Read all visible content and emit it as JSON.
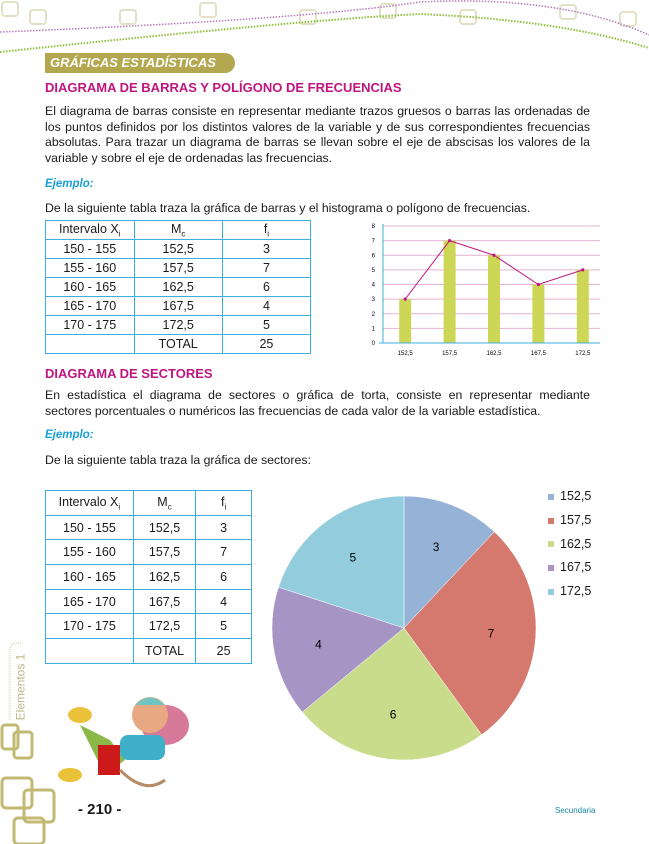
{
  "section_tag": "GRÁFICAS ESTADÍSTICAS",
  "bar_section": {
    "heading": "DIAGRAMA DE BARRAS Y POLÍGONO DE FRECUENCIAS",
    "paragraph": "El diagrama de barras consiste en representar mediante trazos gruesos o barras las ordenadas de los puntos definidos por los distintos valores de la variable y de sus correspondientes frecuencias absolutas. Para trazar un diagrama de barras se llevan sobre el eje de abscisas los valores de la variable y sobre el eje de ordenadas las frecuencias.",
    "example_label": "Ejemplo:",
    "instruction": "De la siguiente tabla traza la gráfica de barras y el histograma o polígono de frecuencias."
  },
  "table": {
    "headers": [
      {
        "main": "Intervalo X",
        "sub": "i"
      },
      {
        "main": "M",
        "sub": "c"
      },
      {
        "main": "f",
        "sub": "i"
      }
    ],
    "rows": [
      [
        "150 - 155",
        "152,5",
        "3"
      ],
      [
        "155 - 160",
        "157,5",
        "7"
      ],
      [
        "160 - 165",
        "162,5",
        "6"
      ],
      [
        "165 - 170",
        "167,5",
        "4"
      ],
      [
        "170 - 175",
        "172,5",
        "5"
      ]
    ],
    "total_label": "TOTAL",
    "total_value": "25"
  },
  "pie_section": {
    "heading": "DIAGRAMA DE SECTORES",
    "paragraph": "En estadística el diagrama de sectores o gráfica de torta, consiste en representar mediante sectores porcentuales o numéricos las frecuencias de cada valor de la variable estadística.",
    "example_label": "Ejemplo:",
    "instruction": "De la siguiente tabla traza la gráfica de sectores:"
  },
  "chart_data": [
    {
      "type": "bar",
      "categories": [
        "152,5",
        "157,5",
        "162,5",
        "167,5",
        "172,5"
      ],
      "values": [
        3,
        7,
        6,
        4,
        5
      ],
      "overlay": "line",
      "ylim": [
        0,
        8
      ],
      "yticks": [
        "0",
        "1",
        "2",
        "3",
        "4",
        "5",
        "6",
        "7",
        "8"
      ],
      "grid": true,
      "colors": {
        "bar": "#cdd655",
        "line": "#c0157f",
        "grid": "#e6b3d3",
        "axis": "#3bb0e0"
      }
    },
    {
      "type": "pie",
      "labels": [
        "152,5",
        "157,5",
        "162,5",
        "167,5",
        "172,5"
      ],
      "values": [
        3,
        7,
        6,
        4,
        5
      ],
      "data_labels": [
        "3",
        "7",
        "6",
        "4",
        "5"
      ],
      "legend": "right",
      "colors": [
        "#95b3d7",
        "#d5786d",
        "#c9dc8c",
        "#a594c4",
        "#93cddd"
      ]
    }
  ],
  "sidebar_text": "Elementos 1",
  "footer": {
    "page": "- 210 -",
    "label": "Secundaria"
  }
}
